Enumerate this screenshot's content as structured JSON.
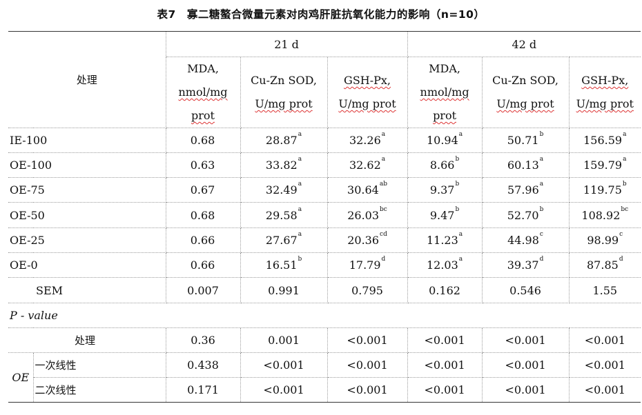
{
  "title": "表7　寡二糖螯合微量元素对肉鸡肝脏抗氧化能力的影响（n=10）",
  "header": {
    "treatment": "处理",
    "period1": "21 d",
    "period2": "42 d",
    "cols": [
      {
        "l1": "MDA,",
        "l2": "nmol/mg",
        "l3": "prot"
      },
      {
        "l1": "Cu-Zn SOD,",
        "l2": "U/mg prot"
      },
      {
        "l1": "GSH-Px,",
        "l2": "U/mg prot"
      },
      {
        "l1": "MDA,",
        "l2": "nmol/mg",
        "l3": "prot"
      },
      {
        "l1": "Cu-Zn SOD,",
        "l2": "U/mg prot"
      },
      {
        "l1": "GSH-Px,",
        "l2": "U/mg prot"
      }
    ]
  },
  "rows": [
    {
      "label": "IE-100",
      "cells": [
        {
          "v": "0.68",
          "s": ""
        },
        {
          "v": "28.87",
          "s": "a"
        },
        {
          "v": "32.26",
          "s": "a"
        },
        {
          "v": "10.94",
          "s": "a"
        },
        {
          "v": "50.71",
          "s": "b"
        },
        {
          "v": "156.59",
          "s": "a"
        }
      ]
    },
    {
      "label": "OE-100",
      "cells": [
        {
          "v": "0.63",
          "s": ""
        },
        {
          "v": "33.82",
          "s": "a"
        },
        {
          "v": "32.62",
          "s": "a"
        },
        {
          "v": "8.66",
          "s": "b"
        },
        {
          "v": "60.13",
          "s": "a"
        },
        {
          "v": "159.79",
          "s": "a"
        }
      ]
    },
    {
      "label": "OE-75",
      "cells": [
        {
          "v": "0.67",
          "s": ""
        },
        {
          "v": "32.49",
          "s": "a"
        },
        {
          "v": "30.64",
          "s": "ab"
        },
        {
          "v": "9.37",
          "s": "b"
        },
        {
          "v": "57.96",
          "s": "a"
        },
        {
          "v": "119.75",
          "s": "b"
        }
      ]
    },
    {
      "label": "OE-50",
      "cells": [
        {
          "v": "0.68",
          "s": ""
        },
        {
          "v": "29.58",
          "s": "a"
        },
        {
          "v": "26.03",
          "s": "bc"
        },
        {
          "v": "9.47",
          "s": "b"
        },
        {
          "v": "52.70",
          "s": "b"
        },
        {
          "v": "108.92",
          "s": "bc"
        }
      ]
    },
    {
      "label": "OE-25",
      "cells": [
        {
          "v": "0.66",
          "s": ""
        },
        {
          "v": "27.67",
          "s": "a"
        },
        {
          "v": "20.36",
          "s": "cd"
        },
        {
          "v": "11.23",
          "s": "a"
        },
        {
          "v": "44.98",
          "s": "c"
        },
        {
          "v": "98.99",
          "s": "c"
        }
      ]
    },
    {
      "label": "OE-0",
      "cells": [
        {
          "v": "0.66",
          "s": ""
        },
        {
          "v": "16.51",
          "s": "b"
        },
        {
          "v": "17.79",
          "s": "d"
        },
        {
          "v": "12.03",
          "s": "a"
        },
        {
          "v": "39.37",
          "s": "d"
        },
        {
          "v": "87.85",
          "s": "d"
        }
      ]
    }
  ],
  "sem": {
    "label": "SEM",
    "values": [
      "0.007",
      "0.991",
      "0.795",
      "0.162",
      "0.546",
      "1.55"
    ]
  },
  "pvalue": {
    "section_label": "P - value",
    "treatment": {
      "label": "处理",
      "values": [
        "0.36",
        "0.001",
        "<0.001",
        "<0.001",
        "<0.001",
        "<0.001"
      ]
    },
    "oe_label": "OE",
    "linear": {
      "label": "一次线性",
      "values": [
        "0.438",
        "<0.001",
        "<0.001",
        "<0.001",
        "<0.001",
        "<0.001"
      ]
    },
    "quadratic": {
      "label": "二次线性",
      "values": [
        "0.171",
        "<0.001",
        "<0.001",
        "<0.001",
        "<0.001",
        "<0.001"
      ]
    }
  }
}
